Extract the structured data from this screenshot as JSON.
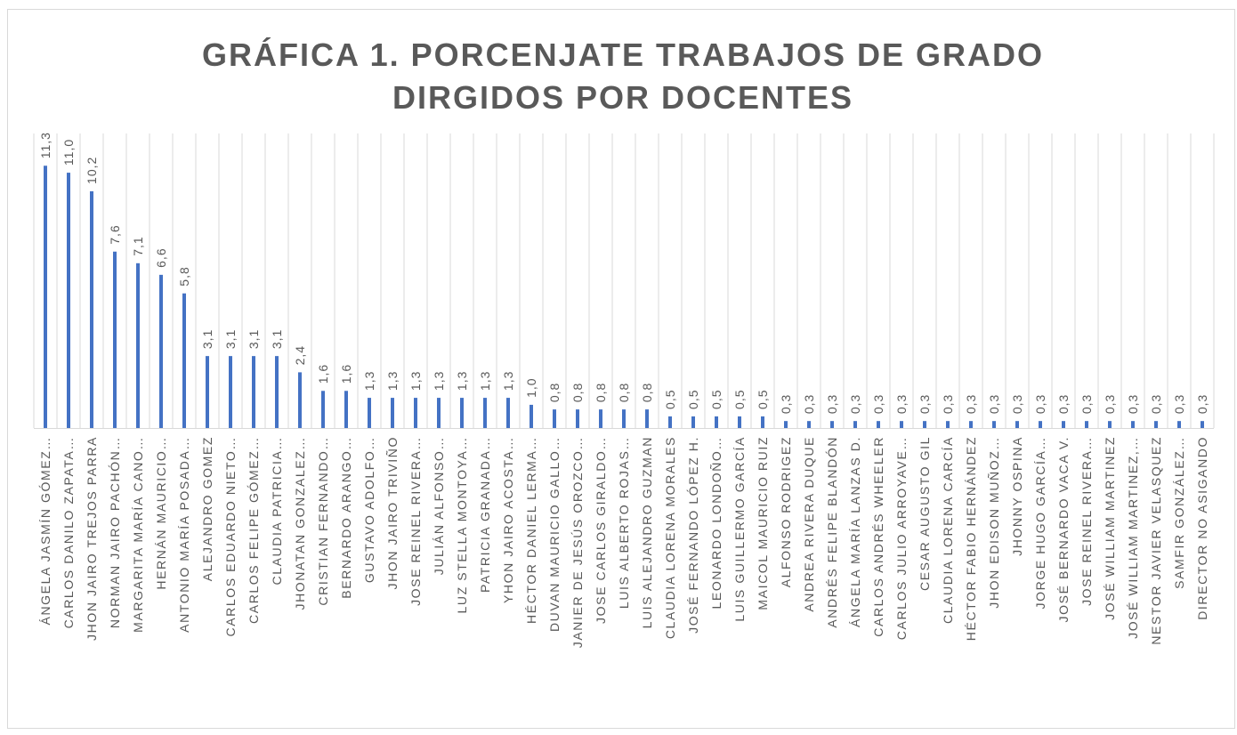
{
  "chart_data": {
    "type": "bar",
    "title": [
      "GRÁFICA 1. PORCENJATE TRABAJOS DE GRADO",
      "DIRGIDOS POR DOCENTES"
    ],
    "categories": [
      "ÁNGELA JASMÍN GÓMEZ…",
      "CARLOS DANILO ZAPATA…",
      "JHON JAIRO TREJOS PARRA",
      "NORMAN JAIRO PACHÓN…",
      "MARGARITA MARÍA CANO…",
      "HERNÁN MAURICIO…",
      "ANTONIO MARÍA POSADA…",
      "ALEJANDRO GOMEZ",
      "CARLOS EDUARDO NIETO…",
      "CARLOS FELIPE GÓMEZ…",
      "CLAUDIA PATRICIA…",
      "JHONATAN GONZALEZ…",
      "CRISTIAN FERNANDO…",
      "BERNARDO ARANGO…",
      "GUSTAVO ADOLFO…",
      "JHON JAIRO TRIVIÑO",
      "JOSE REINEL RIVERA…",
      "JULIÁN ALFONSO…",
      "LUZ STELLA MONTOYA…",
      "PATRICIA GRANADA…",
      "YHON JAIRO ACOSTA…",
      "HÉCTOR DANIEL LERMA…",
      "DUVAN MAURICIO GALLO…",
      "JANIER DE JESÚS OROZCO…",
      "JOSE CARLOS GIRALDO…",
      "LUIS ALBERTO ROJAS…",
      "LUIS ALEJANDRO GUZMAN",
      "CLAUDIA LORENA MORALES",
      "JOSÉ FERNANDO LÓPEZ H.",
      "LEONARDO LONDOÑO…",
      "LUIS GUILLERMO GARCÍA",
      "MAICOL MAURICIO RUIZ",
      "ALFONSO RODRIGEZ",
      "ANDREA RIVERA DUQUE",
      "ANDRÉS FELIPE BLANDÓN",
      "ÁNGELA MARÍA LANZAS D.",
      "CARLOS ANDRÉS WHEELER",
      "CARLOS JULIO ARROYAVE…",
      "CESAR AUGUSTO GIL",
      "CLAUDIA LORENA CARCÍA",
      "HÉCTOR FABIO HERNÁNDEZ",
      "JHON EDISON MUÑOZ…",
      "JHONNY OSPINA",
      "JORGE HUGO GARCÍA…",
      "JOSÉ BERNARDO VACA V.",
      "JOSE REINEL RIVERA…",
      "JOSÉ WILLIAM MARTINEZ",
      "JOSÉ WILLIAM MARTINEZ,…",
      "NESTOR JAVIER VELASQUEZ",
      "SAMFIR GONZÁLEZ…",
      "DIRECTOR NO ASIGANDO"
    ],
    "values": [
      11.3,
      11.0,
      10.2,
      7.6,
      7.1,
      6.6,
      5.8,
      3.1,
      3.1,
      3.1,
      3.1,
      2.4,
      1.6,
      1.6,
      1.3,
      1.3,
      1.3,
      1.3,
      1.3,
      1.3,
      1.3,
      1.0,
      0.8,
      0.8,
      0.8,
      0.8,
      0.8,
      0.5,
      0.5,
      0.5,
      0.5,
      0.5,
      0.3,
      0.3,
      0.3,
      0.3,
      0.3,
      0.3,
      0.3,
      0.3,
      0.3,
      0.3,
      0.3,
      0.3,
      0.3,
      0.3,
      0.3,
      0.3,
      0.3,
      0.3,
      0.3
    ],
    "value_labels": [
      "11,3",
      "11,0",
      "10,2",
      "7,6",
      "7,1",
      "6,6",
      "5,8",
      "3,1",
      "3,1",
      "3,1",
      "3,1",
      "2,4",
      "1,6",
      "1,6",
      "1,3",
      "1,3",
      "1,3",
      "1,3",
      "1,3",
      "1,3",
      "1,3",
      "1,0",
      "0,8",
      "0,8",
      "0,8",
      "0,8",
      "0,8",
      "0,5",
      "0,5",
      "0,5",
      "0,5",
      "0,5",
      "0,3",
      "0,3",
      "0,3",
      "0,3",
      "0,3",
      "0,3",
      "0,3",
      "0,3",
      "0,3",
      "0,3",
      "0,3",
      "0,3",
      "0,3",
      "0,3",
      "0,3",
      "0,3",
      "0,3",
      "0,3",
      "0,3"
    ],
    "color": "#4472c4",
    "ylim": [
      0,
      12
    ],
    "grid": true
  }
}
